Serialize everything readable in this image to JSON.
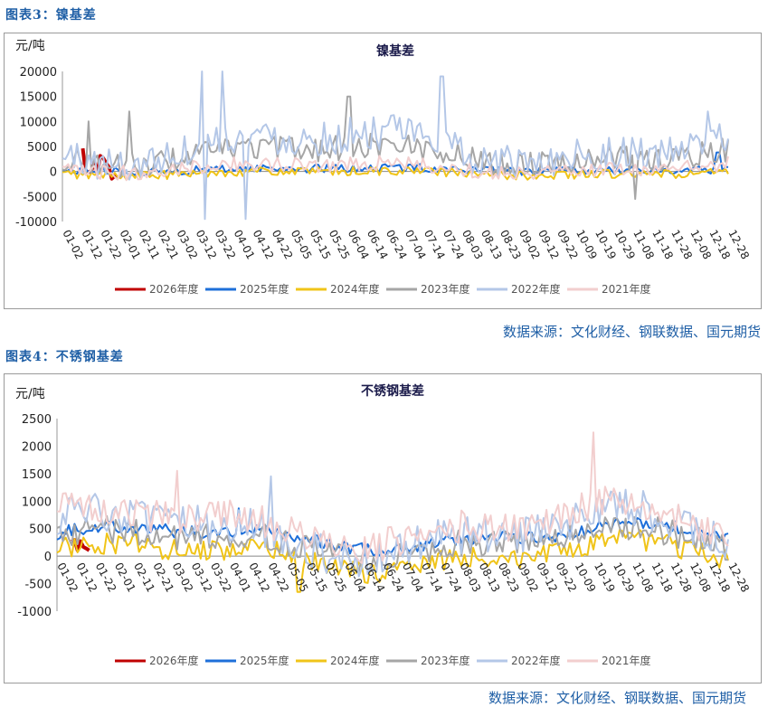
{
  "figures": [
    {
      "label": "图表3：镍基差",
      "source": "数据来源：文化财经、钢联数据、国元期货",
      "chart_data": {
        "type": "line",
        "title": "镍基差",
        "ylabel": "元/吨",
        "ylim": [
          -10000,
          20000
        ],
        "yticks": [
          20000,
          15000,
          10000,
          5000,
          0,
          -5000,
          -10000
        ],
        "x_tick_labels": [
          "01-02",
          "01-12",
          "01-22",
          "02-01",
          "02-11",
          "02-21",
          "03-02",
          "03-12",
          "03-22",
          "04-01",
          "04-12",
          "04-22",
          "05-05",
          "05-15",
          "05-25",
          "06-04",
          "06-14",
          "06-24",
          "07-04",
          "07-14",
          "07-24",
          "08-03",
          "08-13",
          "08-23",
          "09-02",
          "09-12",
          "09-22",
          "10-09",
          "10-19",
          "10-29",
          "11-08",
          "11-18",
          "11-28",
          "12-08",
          "12-18",
          "12-28"
        ],
        "legend_position": "bottom",
        "series": [
          {
            "name": "2026年度",
            "color": "#c00000",
            "width": 4,
            "start": 0.03,
            "end": 0.085,
            "base": 4000,
            "amp": 4500,
            "noise": 2500,
            "spikes": []
          },
          {
            "name": "2025年度",
            "color": "#1e6fd9",
            "width": 2,
            "start": 0.0,
            "end": 1.0,
            "base": 400,
            "amp": 500,
            "noise": 800,
            "spikes": [
              {
                "at": 0.985,
                "v": 3800
              }
            ]
          },
          {
            "name": "2024年度",
            "color": "#f0c419",
            "width": 2,
            "start": 0.0,
            "end": 1.0,
            "base": -300,
            "amp": 600,
            "noise": 900,
            "spikes": []
          },
          {
            "name": "2023年度",
            "color": "#a6a6a6",
            "width": 2,
            "start": 0.0,
            "end": 1.0,
            "base": 3500,
            "amp": 2500,
            "noise": 2500,
            "spikes": [
              {
                "at": 0.04,
                "v": 10000
              },
              {
                "at": 0.1,
                "v": 12000
              },
              {
                "at": 0.43,
                "v": 15000
              },
              {
                "at": 0.86,
                "v": -5500
              }
            ]
          },
          {
            "name": "2022年度",
            "color": "#b4c7e7",
            "width": 2,
            "start": 0.0,
            "end": 1.0,
            "base": 5000,
            "amp": 4000,
            "noise": 3500,
            "spikes": [
              {
                "at": 0.21,
                "v": 20000
              },
              {
                "at": 0.215,
                "v": -9500
              },
              {
                "at": 0.24,
                "v": 20000
              },
              {
                "at": 0.275,
                "v": -9500
              },
              {
                "at": 0.57,
                "v": 19000
              },
              {
                "at": 0.97,
                "v": 12000
              }
            ]
          },
          {
            "name": "2021年度",
            "color": "#f2cece",
            "width": 2,
            "start": 0.0,
            "end": 1.0,
            "base": 800,
            "amp": 1200,
            "noise": 1500,
            "spikes": []
          }
        ]
      }
    },
    {
      "label": "图表4：不锈钢基差",
      "source": "数据来源：文化财经、钢联数据、国元期货",
      "chart_data": {
        "type": "line",
        "title": "不锈钢基差",
        "ylabel": "元/吨",
        "ylim": [
          -1000,
          2500
        ],
        "yticks": [
          2500,
          2000,
          1500,
          1000,
          500,
          0,
          -500,
          -1000
        ],
        "x_tick_labels": [
          "01-02",
          "01-12",
          "01-22",
          "02-01",
          "02-11",
          "02-21",
          "03-02",
          "03-12",
          "03-22",
          "04-01",
          "04-12",
          "04-22",
          "05-05",
          "05-15",
          "05-25",
          "06-04",
          "06-14",
          "06-24",
          "07-04",
          "07-14",
          "07-24",
          "08-03",
          "08-13",
          "08-23",
          "09-02",
          "09-12",
          "09-22",
          "10-09",
          "10-19",
          "10-29",
          "11-08",
          "11-18",
          "11-28",
          "12-08",
          "12-18",
          "12-28"
        ],
        "legend_position": "bottom",
        "series": [
          {
            "name": "2026年度",
            "color": "#c00000",
            "width": 4,
            "start": 0.02,
            "end": 0.05,
            "base": 150,
            "amp": 150,
            "noise": 150,
            "spikes": []
          },
          {
            "name": "2025年度",
            "color": "#1e6fd9",
            "width": 2,
            "start": 0.0,
            "end": 1.0,
            "base": 350,
            "amp": 250,
            "noise": 120,
            "spikes": [
              {
                "at": 0.27,
                "v": 870
              }
            ]
          },
          {
            "name": "2024年度",
            "color": "#f0c419",
            "width": 2,
            "start": 0.0,
            "end": 1.0,
            "base": 0,
            "amp": 300,
            "noise": 200,
            "spikes": [
              {
                "at": 0.36,
                "v": -650
              }
            ]
          },
          {
            "name": "2023年度",
            "color": "#a6a6a6",
            "width": 2,
            "start": 0.0,
            "end": 1.0,
            "base": 250,
            "amp": 300,
            "noise": 250,
            "spikes": []
          },
          {
            "name": "2022年度",
            "color": "#b4c7e7",
            "width": 2,
            "start": 0.0,
            "end": 1.0,
            "base": 400,
            "amp": 500,
            "noise": 350,
            "spikes": [
              {
                "at": 0.32,
                "v": 1450
              }
            ]
          },
          {
            "name": "2021年度",
            "color": "#f2cece",
            "width": 2,
            "start": 0.0,
            "end": 1.0,
            "base": 550,
            "amp": 450,
            "noise": 300,
            "spikes": [
              {
                "at": 0.18,
                "v": 1550
              },
              {
                "at": 0.8,
                "v": 2250
              }
            ]
          }
        ]
      }
    }
  ]
}
